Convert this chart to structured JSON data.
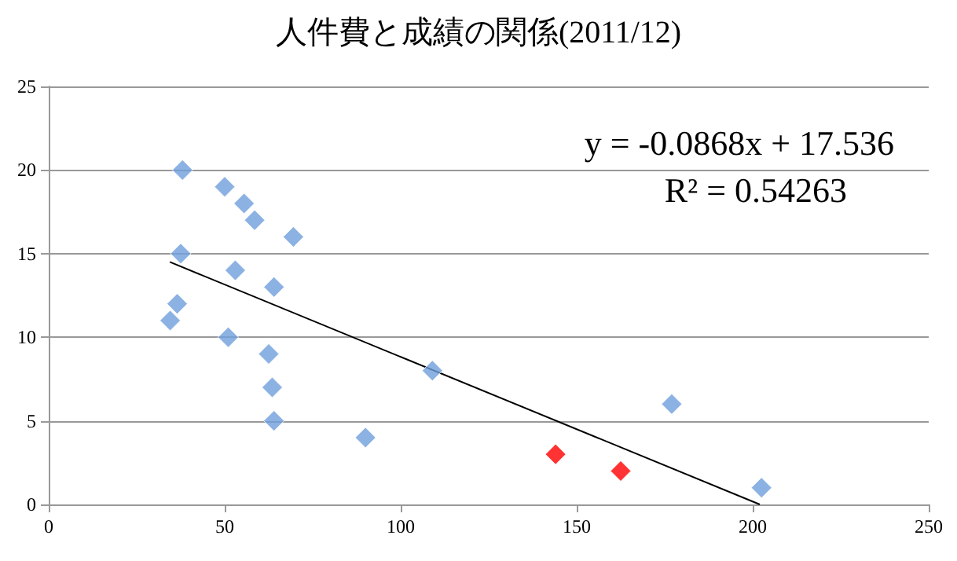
{
  "chart_data": {
    "type": "scatter",
    "title": "人件費と成績の関係(2011/12)",
    "series": [
      {
        "color": "#6f9fdc",
        "marker": "diamond",
        "x": [
          38,
          37.5,
          36.5,
          34.5,
          50,
          55.5,
          58.5,
          69.5,
          53,
          64,
          51,
          62.5,
          63.5,
          64,
          90,
          109,
          177,
          202.5
        ],
        "values": [
          20,
          15,
          12,
          11,
          19,
          18,
          17,
          16,
          14,
          13,
          10,
          9,
          7,
          5,
          4,
          8,
          6,
          1
        ]
      },
      {
        "color": "#ff0000",
        "marker": "diamond",
        "x": [
          144,
          162.5
        ],
        "values": [
          3,
          2
        ]
      },
      {
        "type": "line",
        "color": "#000000",
        "marker": "none",
        "x": [
          34.4,
          202
        ],
        "values": [
          14.5,
          0
        ]
      }
    ],
    "xlim": [
      0,
      250
    ],
    "xticks": [
      0,
      50,
      100,
      150,
      200,
      250
    ],
    "ylim": [
      0,
      25
    ],
    "yticks": [
      0,
      5,
      10,
      15,
      20,
      25
    ],
    "grid": "y",
    "annotations": [
      "y = -0.0868x + 17.536",
      "R² = 0.54263"
    ]
  }
}
